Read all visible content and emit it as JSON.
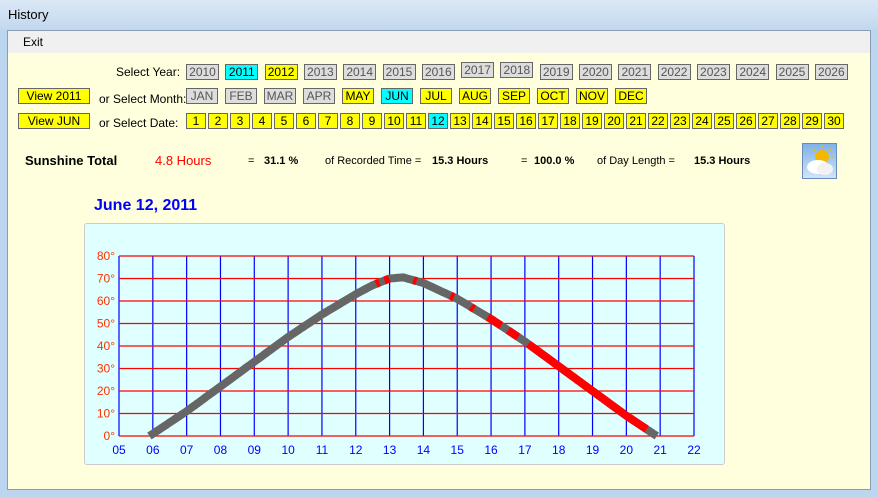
{
  "window": {
    "title": "History"
  },
  "menu": {
    "exit": "Exit"
  },
  "labels": {
    "select_year": "Select Year:",
    "select_month": "or Select Month:",
    "select_date": "or Select Date:"
  },
  "view_year_button": "View 2011",
  "view_month_button": "View JUN",
  "years": [
    {
      "label": "2010",
      "state": "disabled"
    },
    {
      "label": "2011",
      "state": "selected"
    },
    {
      "label": "2012",
      "state": "available"
    },
    {
      "label": "2013",
      "state": "disabled"
    },
    {
      "label": "2014",
      "state": "disabled"
    },
    {
      "label": "2015",
      "state": "disabled"
    },
    {
      "label": "2016",
      "state": "disabled"
    },
    {
      "label": "2017",
      "state": "disabled"
    },
    {
      "label": "2018",
      "state": "disabled"
    },
    {
      "label": "2019",
      "state": "disabled"
    },
    {
      "label": "2020",
      "state": "disabled"
    },
    {
      "label": "2021",
      "state": "disabled"
    },
    {
      "label": "2022",
      "state": "disabled"
    },
    {
      "label": "2023",
      "state": "disabled"
    },
    {
      "label": "2024",
      "state": "disabled"
    },
    {
      "label": "2025",
      "state": "disabled"
    },
    {
      "label": "2026",
      "state": "disabled"
    }
  ],
  "months": [
    {
      "label": "JAN",
      "state": "disabled"
    },
    {
      "label": "FEB",
      "state": "disabled"
    },
    {
      "label": "MAR",
      "state": "disabled"
    },
    {
      "label": "APR",
      "state": "disabled"
    },
    {
      "label": "MAY",
      "state": "available"
    },
    {
      "label": "JUN",
      "state": "selected"
    },
    {
      "label": "JUL",
      "state": "available"
    },
    {
      "label": "AUG",
      "state": "available"
    },
    {
      "label": "SEP",
      "state": "available"
    },
    {
      "label": "OCT",
      "state": "available"
    },
    {
      "label": "NOV",
      "state": "available"
    },
    {
      "label": "DEC",
      "state": "available"
    }
  ],
  "dates": [
    "1",
    "2",
    "3",
    "4",
    "5",
    "6",
    "7",
    "8",
    "9",
    "10",
    "11",
    "12",
    "13",
    "14",
    "15",
    "16",
    "17",
    "18",
    "19",
    "20",
    "21",
    "22",
    "23",
    "24",
    "25",
    "26",
    "27",
    "28",
    "29",
    "30"
  ],
  "selected_date": "12",
  "stats": {
    "title": "Sunshine Total",
    "hours": "4.8 Hours",
    "eq1": "=",
    "pct_recorded": "31.1 %",
    "of_recorded": "of Recorded Time =",
    "recorded_hours": "15.3 Hours",
    "eq2": "=",
    "pct_day": "100.0 %",
    "of_day": "of Day Length =",
    "day_hours": "15.3 Hours"
  },
  "weather_icon": "sun-cloud-icon",
  "date_title": "June 12, 2011",
  "colors": {
    "sunshine": "#ff0000",
    "no_sunshine": "#666666",
    "hgrid": "#ff0000",
    "vgrid": "#0000ff",
    "plot_bg": "#e0ffff"
  },
  "chart_data": {
    "type": "line",
    "x_ticks": [
      "05",
      "06",
      "07",
      "08",
      "09",
      "10",
      "11",
      "12",
      "13",
      "14",
      "15",
      "16",
      "17",
      "18",
      "19",
      "20",
      "21",
      "22"
    ],
    "y_ticks": [
      "0°",
      "10°",
      "20°",
      "30°",
      "40°",
      "50°",
      "60°",
      "70°",
      "80°"
    ],
    "xlim": [
      5,
      22
    ],
    "ylim": [
      0,
      80
    ],
    "grid": true,
    "sun_elevation": [
      [
        5.9,
        0
      ],
      [
        7,
        11
      ],
      [
        8,
        22
      ],
      [
        9,
        33
      ],
      [
        10,
        44
      ],
      [
        11,
        54
      ],
      [
        12,
        63
      ],
      [
        12.5,
        67
      ],
      [
        13,
        70
      ],
      [
        13.4,
        70.5
      ],
      [
        14,
        68
      ],
      [
        15,
        61
      ],
      [
        16,
        52
      ],
      [
        17,
        42
      ],
      [
        18,
        31
      ],
      [
        19,
        20
      ],
      [
        20,
        9
      ],
      [
        20.9,
        0
      ]
    ],
    "sunshine_intervals": [
      [
        12.6,
        12.7
      ],
      [
        12.85,
        13.0
      ],
      [
        13.7,
        13.8
      ],
      [
        14.8,
        14.9
      ],
      [
        15.4,
        15.5
      ],
      [
        15.9,
        16.3
      ],
      [
        16.5,
        16.8
      ],
      [
        17.1,
        20.6
      ]
    ]
  }
}
